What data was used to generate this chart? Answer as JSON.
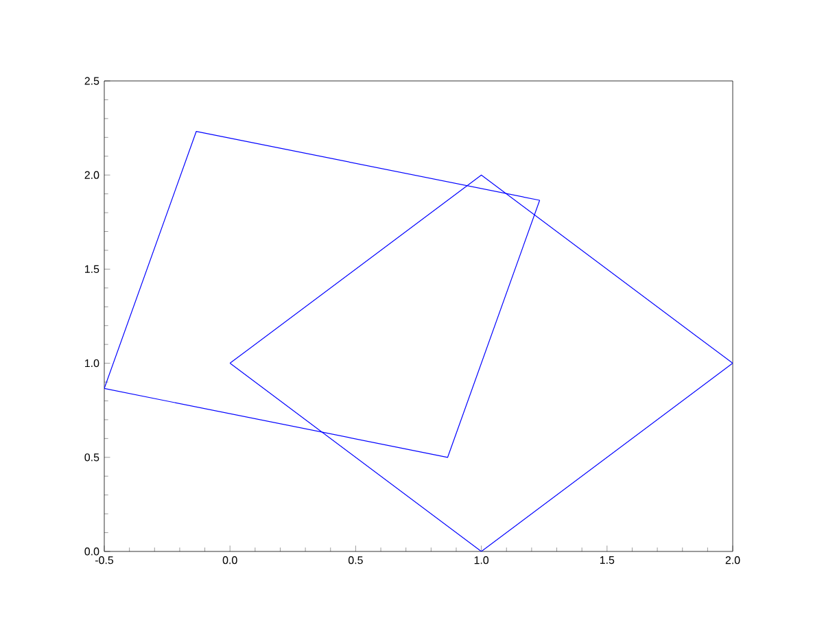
{
  "chart_data": {
    "type": "line",
    "marker": "none",
    "line_style": "solid",
    "xlim": [
      -0.5,
      2.0
    ],
    "ylim": [
      0,
      2.5
    ],
    "xticks": [
      -0.5,
      {
        "value": 0,
        "label": "0.0"
      },
      0.5,
      {
        "value": 1,
        "label": "1.0"
      },
      1.5,
      {
        "value": 2,
        "label": "2.0"
      }
    ],
    "yticks": [
      {
        "value": 0,
        "label": "0.0"
      },
      0.5,
      {
        "value": 1,
        "label": "1.0"
      },
      1.5,
      {
        "value": 2,
        "label": "2.0"
      },
      2.5
    ],
    "series": [
      {
        "color": "#0000ff",
        "x": [
          0,
          1,
          2
        ],
        "values": [
          1,
          2,
          1
        ]
      },
      {
        "color": "#0000ff",
        "x": [
          0,
          1,
          2
        ],
        "values": [
          1,
          0,
          1
        ]
      },
      {
        "color": "#0000ff",
        "x": [
          -0.5,
          -0.134,
          1.232
        ],
        "values": [
          0.866,
          2.232,
          1.866
        ]
      },
      {
        "color": "#0000ff",
        "x": [
          -0.5,
          0.866,
          1.232
        ],
        "values": [
          0.866,
          0.5,
          1.866
        ]
      }
    ]
  }
}
